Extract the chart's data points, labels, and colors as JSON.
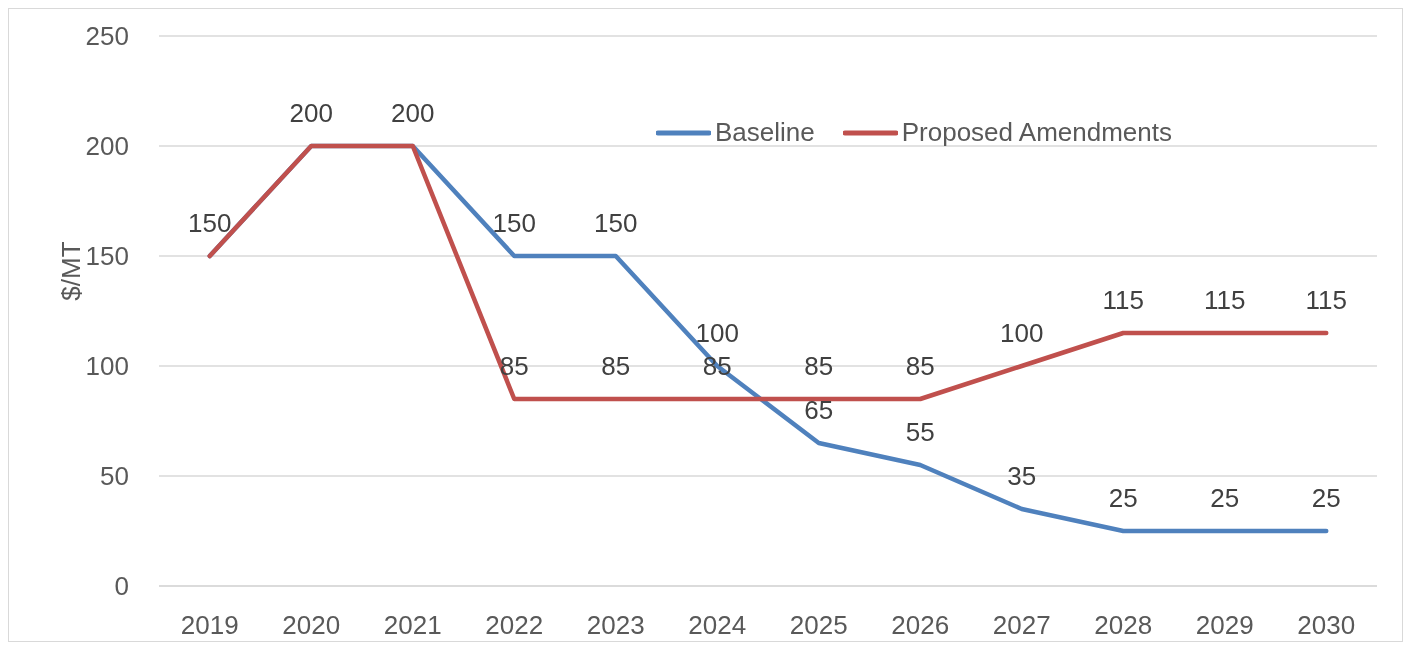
{
  "chart_data": {
    "type": "line",
    "ylabel": "$/MT",
    "categories": [
      "2019",
      "2020",
      "2021",
      "2022",
      "2023",
      "2024",
      "2025",
      "2026",
      "2027",
      "2028",
      "2029",
      "2030"
    ],
    "series": [
      {
        "name": "Baseline",
        "color": "#4f81bd",
        "values": [
          150,
          200,
          200,
          150,
          150,
          100,
          65,
          55,
          35,
          25,
          25,
          25
        ],
        "value_labels": [
          "150",
          "200",
          "200",
          "150",
          "150",
          "100",
          "65",
          "55",
          "35",
          "25",
          "25",
          "25"
        ]
      },
      {
        "name": "Proposed Amendments",
        "color": "#c0504d",
        "values": [
          150,
          200,
          200,
          85,
          85,
          85,
          85,
          85,
          100,
          115,
          115,
          115
        ],
        "value_labels": [
          null,
          null,
          null,
          "85",
          "85",
          "85",
          "85",
          "85",
          "100",
          "115",
          "115",
          "115"
        ]
      }
    ],
    "ylim": [
      0,
      250
    ],
    "yticks": [
      0,
      50,
      100,
      150,
      200,
      250
    ],
    "grid": "y",
    "legend": "top",
    "marker": "none",
    "line_style": "solid"
  }
}
